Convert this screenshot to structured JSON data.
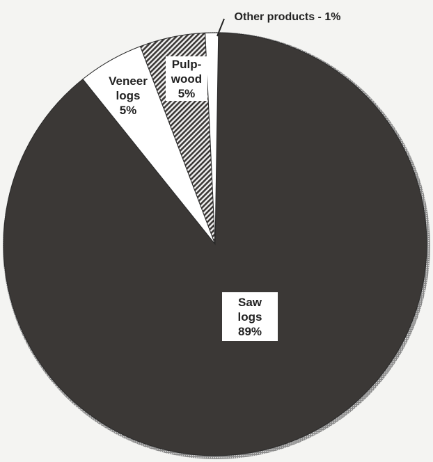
{
  "chart_data": {
    "type": "pie",
    "title": "",
    "slices": [
      {
        "label_lines": [
          "Saw",
          "logs",
          "89%"
        ],
        "value": 89,
        "color": "#3b3836",
        "pattern": "solid"
      },
      {
        "label_lines": [
          "Veneer",
          "logs",
          "5%"
        ],
        "value": 5,
        "color": "#ffffff",
        "pattern": "solid"
      },
      {
        "label_lines": [
          "Pulp-",
          "wood",
          "5%"
        ],
        "value": 5,
        "color": "#3b3836",
        "pattern": "hatch"
      },
      {
        "label_lines": [
          "Other products - 1%"
        ],
        "value": 1,
        "color": "#ffffff",
        "pattern": "solid"
      }
    ]
  }
}
